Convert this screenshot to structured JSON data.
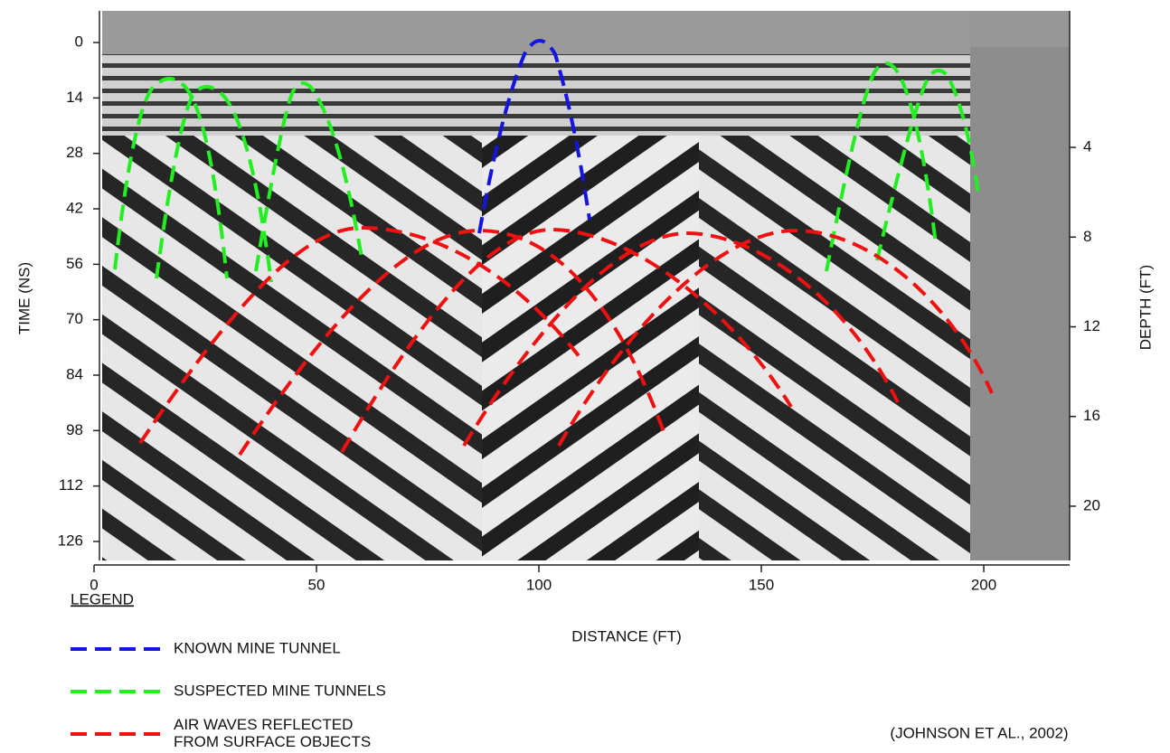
{
  "chart_data": {
    "type": "radargram",
    "xlabel": "DISTANCE (FT)",
    "ylabel": "TIME (NS)",
    "y2label": "DEPTH (FT)",
    "xlim": [
      0,
      219.3
    ],
    "xticks": [
      0,
      50,
      100,
      150,
      200
    ],
    "ylim": [
      -8,
      130.8
    ],
    "yticks": [
      0,
      14,
      28,
      42,
      56,
      70,
      84,
      98,
      112,
      126
    ],
    "y2lim": [
      -2.09,
      22.42
    ],
    "y2ticks": [
      4,
      8,
      12,
      16,
      20
    ],
    "legend_title": "LEGEND",
    "series": [
      {
        "name": "KNOWN MINE TUNNEL",
        "color": "#1515e0"
      },
      {
        "name": "SUSPECTED MINE TUNNELS",
        "color": "#22ee22"
      },
      {
        "name": "AIR WAVES REFLECTED FROM SURFACE OBJECTS",
        "color": "#ee1111"
      }
    ],
    "annotation": "(JOHNSON ET AL., 2002)"
  }
}
